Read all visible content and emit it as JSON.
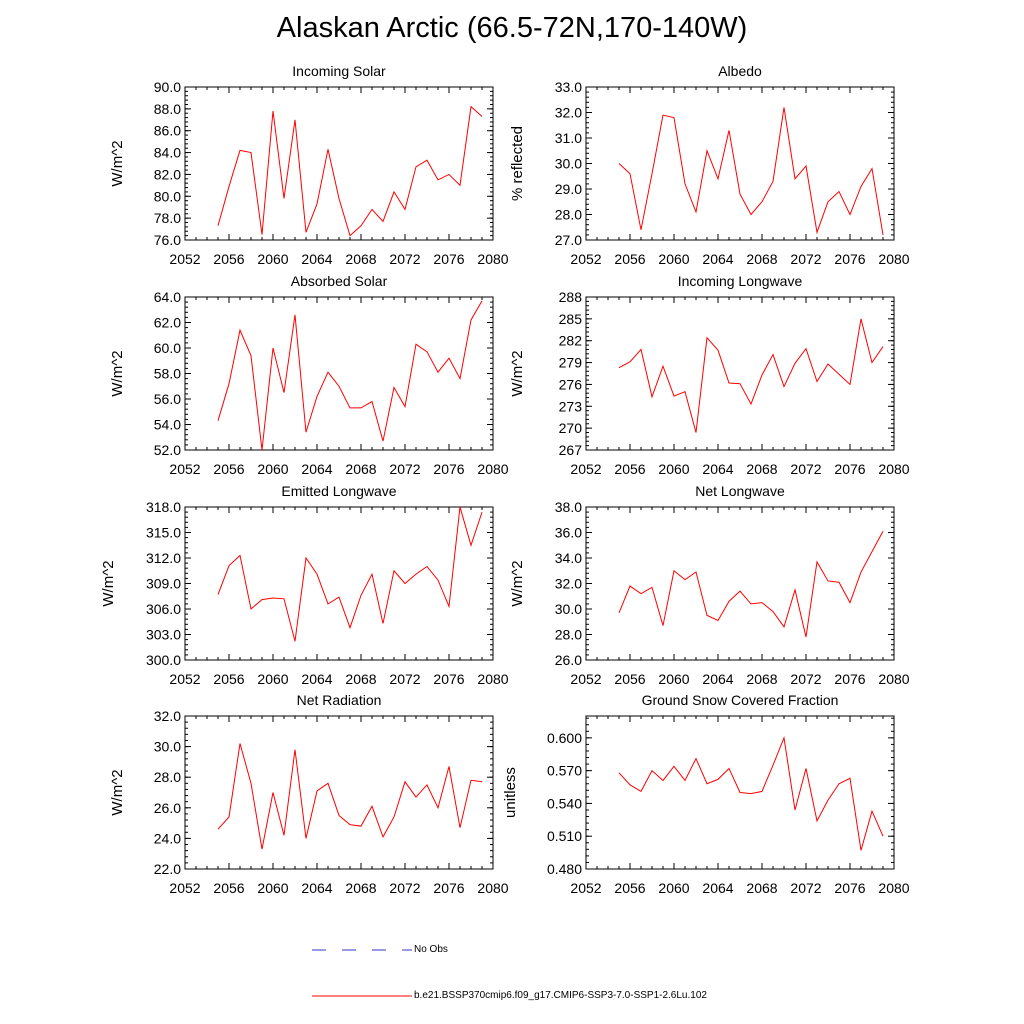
{
  "figure": {
    "title": "Alaskan Arctic (66.5-72N,170-140W)"
  },
  "legend": {
    "obs_label": "No Obs",
    "model_label": "b.e21.BSSP370cmip6.f09_g17.CMIP6-SSP3-7.0-SSP1-2.6Lu.102",
    "obs_color": "#3333cc",
    "model_color": "#ff0000"
  },
  "chart_data": [
    {
      "type": "line",
      "title": "Incoming Solar",
      "ylabel": "W/m^2",
      "xlim": [
        2052,
        2080
      ],
      "ylim": [
        76,
        90
      ],
      "x_ticks": [
        "2052",
        "2056",
        "2060",
        "2064",
        "2068",
        "2072",
        "2076",
        "2080"
      ],
      "y_ticks": [
        "76.0",
        "78.0",
        "80.0",
        "82.0",
        "84.0",
        "86.0",
        "88.0",
        "90.0"
      ],
      "series": [
        {
          "color": "#ff0000",
          "x": [
            2055,
            2056,
            2057,
            2058,
            2059,
            2060,
            2061,
            2062,
            2063,
            2064,
            2065,
            2066,
            2067,
            2068,
            2069,
            2070,
            2071,
            2072,
            2073,
            2074,
            2075,
            2076,
            2077,
            2078,
            2079
          ],
          "values": [
            77.3,
            80.9,
            84.2,
            84.0,
            76.5,
            87.8,
            79.8,
            87.0,
            76.7,
            79.3,
            84.3,
            79.8,
            76.4,
            77.3,
            78.8,
            77.7,
            80.4,
            78.8,
            82.7,
            83.3,
            81.5,
            82.0,
            81.0,
            88.2,
            87.3
          ]
        }
      ]
    },
    {
      "type": "line",
      "title": "Albedo",
      "ylabel": "% reflected",
      "xlim": [
        2052,
        2080
      ],
      "ylim": [
        27,
        33
      ],
      "x_ticks": [
        "2052",
        "2056",
        "2060",
        "2064",
        "2068",
        "2072",
        "2076",
        "2080"
      ],
      "y_ticks": [
        "27.0",
        "28.0",
        "29.0",
        "30.0",
        "31.0",
        "32.0",
        "33.0"
      ],
      "series": [
        {
          "color": "#ff0000",
          "x": [
            2055,
            2056,
            2057,
            2058,
            2059,
            2060,
            2061,
            2062,
            2063,
            2064,
            2065,
            2066,
            2067,
            2068,
            2069,
            2070,
            2071,
            2072,
            2073,
            2074,
            2075,
            2076,
            2077,
            2078,
            2079
          ],
          "values": [
            30.0,
            29.6,
            27.4,
            29.6,
            31.9,
            31.8,
            29.2,
            28.1,
            30.5,
            29.4,
            31.3,
            28.8,
            28.0,
            28.5,
            29.3,
            32.2,
            29.4,
            29.9,
            27.3,
            28.5,
            28.9,
            28.0,
            29.1,
            29.8,
            27.2
          ]
        }
      ]
    },
    {
      "type": "line",
      "title": "Absorbed Solar",
      "ylabel": "W/m^2",
      "xlim": [
        2052,
        2080
      ],
      "ylim": [
        52,
        64
      ],
      "x_ticks": [
        "2052",
        "2056",
        "2060",
        "2064",
        "2068",
        "2072",
        "2076",
        "2080"
      ],
      "y_ticks": [
        "52.0",
        "54.0",
        "56.0",
        "58.0",
        "60.0",
        "62.0",
        "64.0"
      ],
      "series": [
        {
          "color": "#ff0000",
          "x": [
            2055,
            2056,
            2057,
            2058,
            2059,
            2060,
            2061,
            2062,
            2063,
            2064,
            2065,
            2066,
            2067,
            2068,
            2069,
            2070,
            2071,
            2072,
            2073,
            2074,
            2075,
            2076,
            2077,
            2078,
            2079
          ],
          "values": [
            54.3,
            57.2,
            61.4,
            59.4,
            52.0,
            60.0,
            56.5,
            62.6,
            53.4,
            56.2,
            58.1,
            57.0,
            55.3,
            55.3,
            55.8,
            52.7,
            56.9,
            55.4,
            60.3,
            59.7,
            58.1,
            59.2,
            57.6,
            62.2,
            63.7
          ]
        }
      ]
    },
    {
      "type": "line",
      "title": "Incoming Longwave",
      "ylabel": "W/m^2",
      "xlim": [
        2052,
        2080
      ],
      "ylim": [
        267,
        288
      ],
      "x_ticks": [
        "2052",
        "2056",
        "2060",
        "2064",
        "2068",
        "2072",
        "2076",
        "2080"
      ],
      "y_ticks": [
        "267",
        "270",
        "273",
        "276",
        "279",
        "282",
        "285",
        "288"
      ],
      "series": [
        {
          "color": "#ff0000",
          "x": [
            2055,
            2056,
            2057,
            2058,
            2059,
            2060,
            2061,
            2062,
            2063,
            2064,
            2065,
            2066,
            2067,
            2068,
            2069,
            2070,
            2071,
            2072,
            2073,
            2074,
            2075,
            2076,
            2077,
            2078,
            2079
          ],
          "values": [
            278.3,
            279.1,
            280.8,
            274.3,
            278.5,
            274.4,
            275.0,
            269.4,
            282.4,
            280.7,
            276.2,
            276.1,
            273.3,
            277.3,
            280.1,
            275.7,
            278.9,
            280.9,
            276.4,
            278.8,
            277.4,
            276.0,
            285.0,
            279.0,
            281.2
          ]
        }
      ]
    },
    {
      "type": "line",
      "title": "Emitted Longwave",
      "ylabel": "W/m^2",
      "xlim": [
        2052,
        2080
      ],
      "ylim": [
        300,
        318
      ],
      "x_ticks": [
        "2052",
        "2056",
        "2060",
        "2064",
        "2068",
        "2072",
        "2076",
        "2080"
      ],
      "y_ticks": [
        "300.0",
        "303.0",
        "306.0",
        "309.0",
        "312.0",
        "315.0",
        "318.0"
      ],
      "series": [
        {
          "color": "#ff0000",
          "x": [
            2055,
            2056,
            2057,
            2058,
            2059,
            2060,
            2061,
            2062,
            2063,
            2064,
            2065,
            2066,
            2067,
            2068,
            2069,
            2070,
            2071,
            2072,
            2073,
            2074,
            2075,
            2076,
            2077,
            2078,
            2079
          ],
          "values": [
            307.7,
            311.1,
            312.3,
            306.0,
            307.1,
            307.3,
            307.2,
            302.2,
            312.0,
            310.1,
            306.6,
            307.4,
            303.8,
            307.6,
            310.1,
            304.3,
            310.5,
            309.0,
            310.1,
            311.0,
            309.4,
            306.3,
            318.0,
            313.5,
            317.4
          ]
        }
      ]
    },
    {
      "type": "line",
      "title": "Net Longwave",
      "ylabel": "W/m^2",
      "xlim": [
        2052,
        2080
      ],
      "ylim": [
        26,
        38
      ],
      "x_ticks": [
        "2052",
        "2056",
        "2060",
        "2064",
        "2068",
        "2072",
        "2076",
        "2080"
      ],
      "y_ticks": [
        "26.0",
        "28.0",
        "30.0",
        "32.0",
        "34.0",
        "36.0",
        "38.0"
      ],
      "series": [
        {
          "color": "#ff0000",
          "x": [
            2055,
            2056,
            2057,
            2058,
            2059,
            2060,
            2061,
            2062,
            2063,
            2064,
            2065,
            2066,
            2067,
            2068,
            2069,
            2070,
            2071,
            2072,
            2073,
            2074,
            2075,
            2076,
            2077,
            2078,
            2079
          ],
          "values": [
            29.7,
            31.8,
            31.2,
            31.7,
            28.7,
            33.0,
            32.3,
            32.9,
            29.5,
            29.1,
            30.6,
            31.4,
            30.4,
            30.5,
            29.8,
            28.6,
            31.5,
            27.8,
            33.7,
            32.2,
            32.1,
            30.5,
            32.9,
            34.5,
            36.1
          ]
        }
      ]
    },
    {
      "type": "line",
      "title": "Net Radiation",
      "ylabel": "W/m^2",
      "xlim": [
        2052,
        2080
      ],
      "ylim": [
        22,
        32
      ],
      "x_ticks": [
        "2052",
        "2056",
        "2060",
        "2064",
        "2068",
        "2072",
        "2076",
        "2080"
      ],
      "y_ticks": [
        "22.0",
        "24.0",
        "26.0",
        "28.0",
        "30.0",
        "32.0"
      ],
      "series": [
        {
          "color": "#ff0000",
          "x": [
            2055,
            2056,
            2057,
            2058,
            2059,
            2060,
            2061,
            2062,
            2063,
            2064,
            2065,
            2066,
            2067,
            2068,
            2069,
            2070,
            2071,
            2072,
            2073,
            2074,
            2075,
            2076,
            2077,
            2078,
            2079
          ],
          "values": [
            24.6,
            25.4,
            30.2,
            27.6,
            23.3,
            27.0,
            24.2,
            29.8,
            24.0,
            27.1,
            27.6,
            25.5,
            24.9,
            24.8,
            26.1,
            24.1,
            25.4,
            27.7,
            26.7,
            27.5,
            26.0,
            28.7,
            24.7,
            27.8,
            27.7
          ]
        }
      ]
    },
    {
      "type": "line",
      "title": "Ground Snow Covered Fraction",
      "ylabel": "unitless",
      "xlim": [
        2052,
        2080
      ],
      "ylim": [
        0.48,
        0.62
      ],
      "x_ticks": [
        "2052",
        "2056",
        "2060",
        "2064",
        "2068",
        "2072",
        "2076",
        "2080"
      ],
      "y_ticks": [
        "0.480",
        "0.510",
        "0.540",
        "0.570",
        "0.600"
      ],
      "series": [
        {
          "color": "#ff0000",
          "x": [
            2055,
            2056,
            2057,
            2058,
            2059,
            2060,
            2061,
            2062,
            2063,
            2064,
            2065,
            2066,
            2067,
            2068,
            2069,
            2070,
            2071,
            2072,
            2073,
            2074,
            2075,
            2076,
            2077,
            2078,
            2079
          ],
          "values": [
            0.568,
            0.557,
            0.551,
            0.57,
            0.561,
            0.574,
            0.561,
            0.581,
            0.558,
            0.562,
            0.572,
            0.55,
            0.549,
            0.551,
            0.575,
            0.6,
            0.534,
            0.572,
            0.524,
            0.543,
            0.558,
            0.563,
            0.497,
            0.533,
            0.51
          ]
        }
      ]
    }
  ]
}
